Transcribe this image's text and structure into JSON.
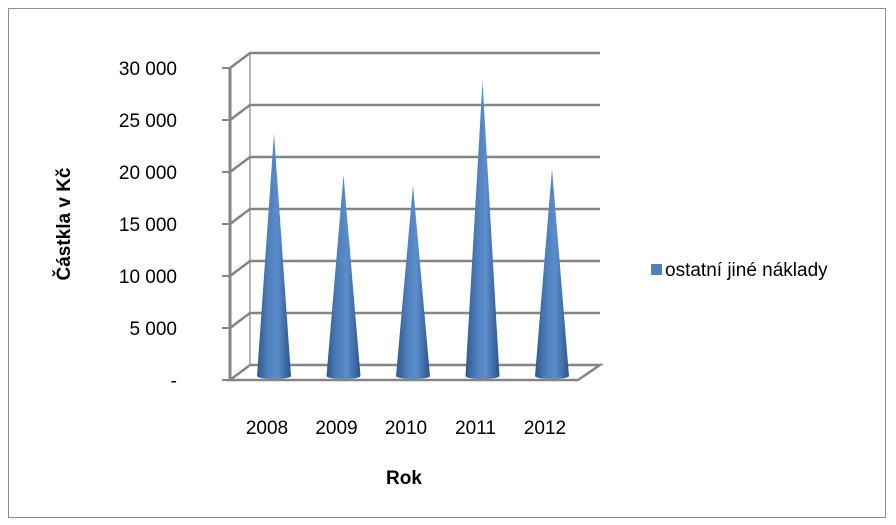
{
  "chart_data": {
    "type": "bar",
    "bar_shape": "cone",
    "view": "3d",
    "categories": [
      "2008",
      "2009",
      "2010",
      "2011",
      "2012"
    ],
    "series": [
      {
        "name": "ostatní jiné náklady",
        "values": [
          24200,
          20200,
          19200,
          29200,
          20800
        ],
        "color": "#4f81bd"
      }
    ],
    "xlabel": "Rok",
    "ylabel": "Částkla v Kč",
    "ylim": [
      0,
      30000
    ],
    "yticks": [
      {
        "value": 0,
        "label": "-"
      },
      {
        "value": 5000,
        "label": "5 000"
      },
      {
        "value": 10000,
        "label": "10 000"
      },
      {
        "value": 15000,
        "label": "15 000"
      },
      {
        "value": 20000,
        "label": "20 000"
      },
      {
        "value": 25000,
        "label": "25 000"
      },
      {
        "value": 30000,
        "label": "30 000"
      }
    ],
    "grid": true,
    "legend": "right"
  }
}
